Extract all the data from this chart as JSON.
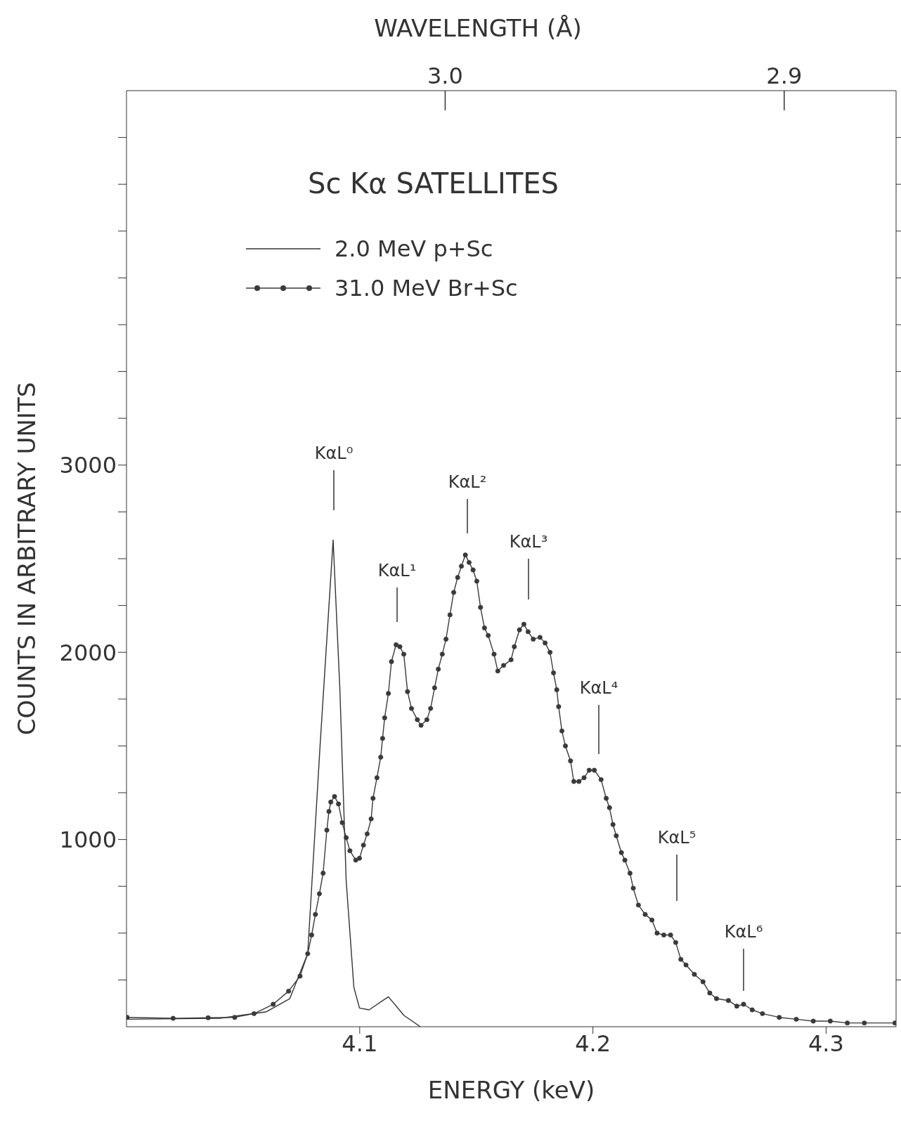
{
  "chart_data": {
    "type": "line",
    "title": "Sc Kα SATELLITES",
    "xlabel": "ENERGY (keV)",
    "ylabel": "COUNTS IN ARBITRARY UNITS",
    "x2label": "WAVELENGTH (Å)",
    "xlim": [
      4.0,
      4.33
    ],
    "xticks": [
      4.1,
      4.2,
      4.3
    ],
    "x2lim": [
      3.094,
      2.867
    ],
    "x2ticks": [
      {
        "value": 3.0,
        "label": "3.0"
      },
      2.9
    ],
    "ylim": [
      0,
      5000
    ],
    "yticks": [
      {
        "value": 250,
        "label": null
      },
      {
        "value": 500,
        "label": null
      },
      {
        "value": 750,
        "label": null
      },
      1000,
      {
        "value": 1250,
        "label": null
      },
      {
        "value": 1500,
        "label": null
      },
      {
        "value": 1750,
        "label": null
      },
      2000,
      {
        "value": 2250,
        "label": null
      },
      {
        "value": 2500,
        "label": null
      },
      {
        "value": 2750,
        "label": null
      },
      3000,
      {
        "value": 3250,
        "label": null
      },
      {
        "value": 3500,
        "label": null
      },
      {
        "value": 3750,
        "label": null
      },
      {
        "value": 4000,
        "label": null
      },
      {
        "value": 4250,
        "label": null
      },
      {
        "value": 4500,
        "label": null
      },
      {
        "value": 4750,
        "label": null
      }
    ],
    "legend": "top left",
    "line_style": "solid",
    "series": [
      {
        "name": "2.0 MeV p+Sc",
        "color": "#333333",
        "marker": "none",
        "x": [
          4.0,
          4.04,
          4.06,
          4.07,
          4.0777,
          4.083,
          4.0886,
          4.0915,
          4.0942,
          4.0975,
          4.0999,
          4.104,
          4.1123,
          4.119,
          4.126
        ],
        "values": [
          40,
          45,
          80,
          150,
          390,
          1500,
          2600,
          1800,
          780,
          210,
          100,
          90,
          160,
          60,
          0
        ]
      },
      {
        "name": "31.0 MeV Br+Sc",
        "color": "#3a3a3a",
        "marker": "circle",
        "x": [
          4.0003,
          4.02,
          4.035,
          4.0464,
          4.0547,
          4.0629,
          4.0695,
          4.0744,
          4.0777,
          4.0794,
          4.081,
          4.0827,
          4.0843,
          4.0859,
          4.0868,
          4.0876,
          4.0892,
          4.0909,
          4.0925,
          4.0942,
          4.0958,
          4.0983,
          4.0999,
          4.1016,
          4.1032,
          4.1049,
          4.1057,
          4.1074,
          4.109,
          4.1098,
          4.1107,
          4.1123,
          4.1136,
          4.1156,
          4.1172,
          4.1189,
          4.1205,
          4.1222,
          4.1247,
          4.1263,
          4.1288,
          4.1304,
          4.1321,
          4.1337,
          4.1354,
          4.137,
          4.1387,
          4.1403,
          4.142,
          4.1436,
          4.1453,
          4.1469,
          4.1486,
          4.1502,
          4.1518,
          4.1535,
          4.1551,
          4.1576,
          4.1592,
          4.1617,
          4.1649,
          4.1663,
          4.1685,
          4.1704,
          4.1722,
          4.1744,
          4.1773,
          4.1795,
          4.1816,
          4.1831,
          4.1845,
          4.1853,
          4.1867,
          4.1882,
          4.1904,
          4.1918,
          4.194,
          4.1962,
          4.1984,
          4.2006,
          4.2035,
          4.2057,
          4.2071,
          4.2086,
          4.21,
          4.2122,
          4.2137,
          4.2159,
          4.2173,
          4.2195,
          4.2224,
          4.2253,
          4.2275,
          4.2304,
          4.2333,
          4.2355,
          4.2377,
          4.2399,
          4.2435,
          4.2472,
          4.2501,
          4.253,
          4.2581,
          4.2617,
          4.2646,
          4.2683,
          4.2727,
          4.2799,
          4.2872,
          4.2945,
          4.3018,
          4.3091,
          4.3164,
          4.3295
        ],
        "values": [
          50,
          45,
          48,
          50,
          70,
          120,
          190,
          270,
          390,
          490,
          600,
          710,
          820,
          1050,
          1150,
          1200,
          1230,
          1190,
          1090,
          1010,
          940,
          890,
          900,
          970,
          1030,
          1110,
          1220,
          1330,
          1440,
          1540,
          1650,
          1780,
          1950,
          2040,
          2030,
          1990,
          1790,
          1700,
          1640,
          1610,
          1640,
          1700,
          1810,
          1910,
          1990,
          2070,
          2200,
          2320,
          2400,
          2460,
          2520,
          2480,
          2440,
          2380,
          2240,
          2130,
          2090,
          1990,
          1900,
          1930,
          1960,
          2030,
          2120,
          2150,
          2110,
          2070,
          2080,
          2050,
          2000,
          1890,
          1800,
          1710,
          1580,
          1500,
          1420,
          1310,
          1310,
          1330,
          1370,
          1370,
          1320,
          1220,
          1170,
          1080,
          1020,
          930,
          890,
          820,
          740,
          650,
          600,
          570,
          500,
          490,
          490,
          450,
          360,
          330,
          280,
          240,
          180,
          150,
          140,
          110,
          120,
          90,
          70,
          50,
          40,
          30,
          30,
          20,
          20,
          20
        ]
      }
    ],
    "annotations": [
      "KαL⁰",
      "KαL¹",
      "KαL²",
      "KαL³",
      "KαL⁴",
      "KαL⁵",
      "KαL⁶"
    ]
  }
}
